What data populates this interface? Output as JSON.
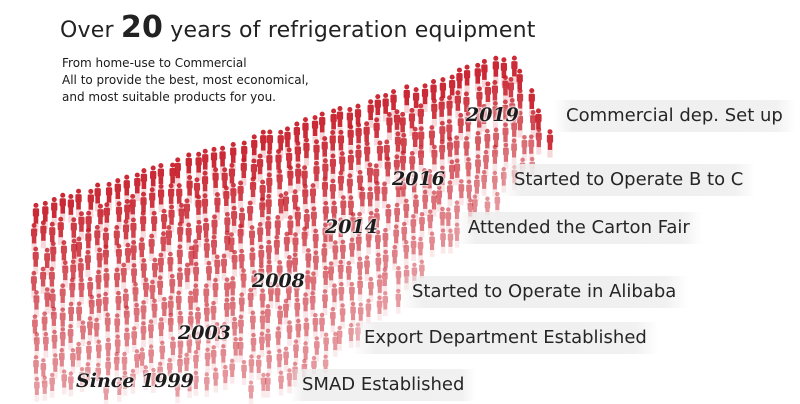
{
  "header": {
    "title_prefix": "Over",
    "title_number": "20",
    "title_suffix": "years of refrigeration equipment",
    "lines": [
      "From home-use to Commercial",
      "All to provide the best, most economical,",
      "and most suitable products for you."
    ]
  },
  "timeline": [
    {
      "year": "Since 1999",
      "event": "SMAD Established"
    },
    {
      "year": "2003",
      "event": "Export Department Established"
    },
    {
      "year": "2008",
      "event": "Started to Operate in Alibaba"
    },
    {
      "year": "2014",
      "event": "Attended the Carton Fair"
    },
    {
      "year": "2016",
      "event": "Started to Operate B to C"
    },
    {
      "year": "2019",
      "event": "Commercial dep. Set up"
    }
  ],
  "colors": {
    "figure": "#c8202c",
    "figure_light": "#e8a0a6"
  }
}
